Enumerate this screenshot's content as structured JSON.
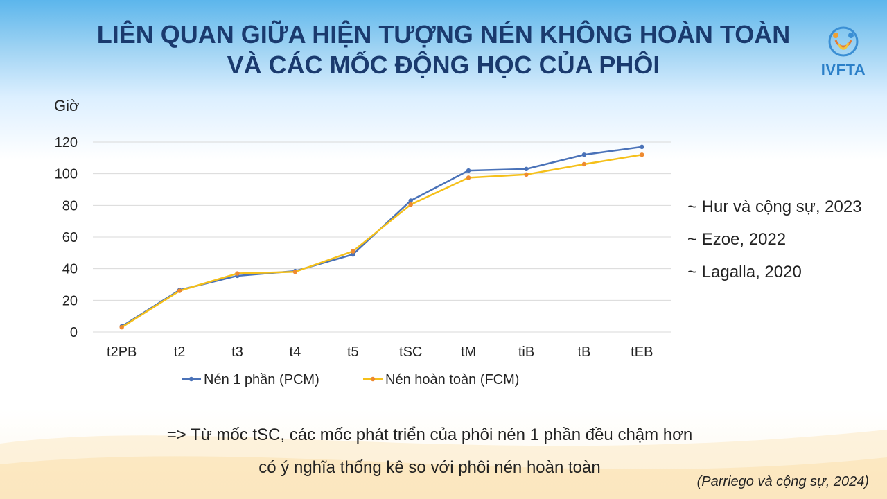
{
  "slide": {
    "title_line1": "LIÊN QUAN GIỮA HIỆN TƯỢNG NÉN KHÔNG HOÀN TOÀN",
    "title_line2": "VÀ CÁC MỐC ĐỘNG HỌC CỦA PHÔI",
    "logo_text": "IVFTA",
    "references": [
      "~ Hur và cộng sự, 2023",
      "~ Ezoe, 2022",
      "~ Lagalla, 2020"
    ],
    "conclusion_line1": "=> Từ mốc tSC, các mốc phát triển của phôi nén 1 phần đều chậm hơn",
    "conclusion_line2": "có ý nghĩa thống kê so với phôi nén hoàn toàn",
    "citation": "(Parriego và cộng sự, 2024)",
    "colors": {
      "title": "#1a3a6e",
      "pcm": "#4a72b8",
      "fcm_line": "#f5c01a",
      "fcm_marker": "#ee8a30",
      "grid": "#d9d9d9"
    }
  },
  "chart_data": {
    "type": "line",
    "ylabel": "Giờ",
    "xlabel": "",
    "categories": [
      "t2PB",
      "t2",
      "t3",
      "t4",
      "t5",
      "tSC",
      "tM",
      "tiB",
      "tB",
      "tEB"
    ],
    "ylim": [
      0,
      120
    ],
    "yticks": [
      0,
      20,
      40,
      60,
      80,
      100,
      120
    ],
    "grid": true,
    "legend_position": "bottom",
    "series": [
      {
        "name": "Nén 1 phần (PCM)",
        "values": [
          3.5,
          26.5,
          35.5,
          38.5,
          49,
          83,
          102,
          103,
          112,
          117
        ]
      },
      {
        "name": "Nén hoàn toàn (FCM)",
        "values": [
          3,
          26,
          37,
          38,
          51,
          80.5,
          97.5,
          99.5,
          106,
          112
        ]
      }
    ]
  }
}
